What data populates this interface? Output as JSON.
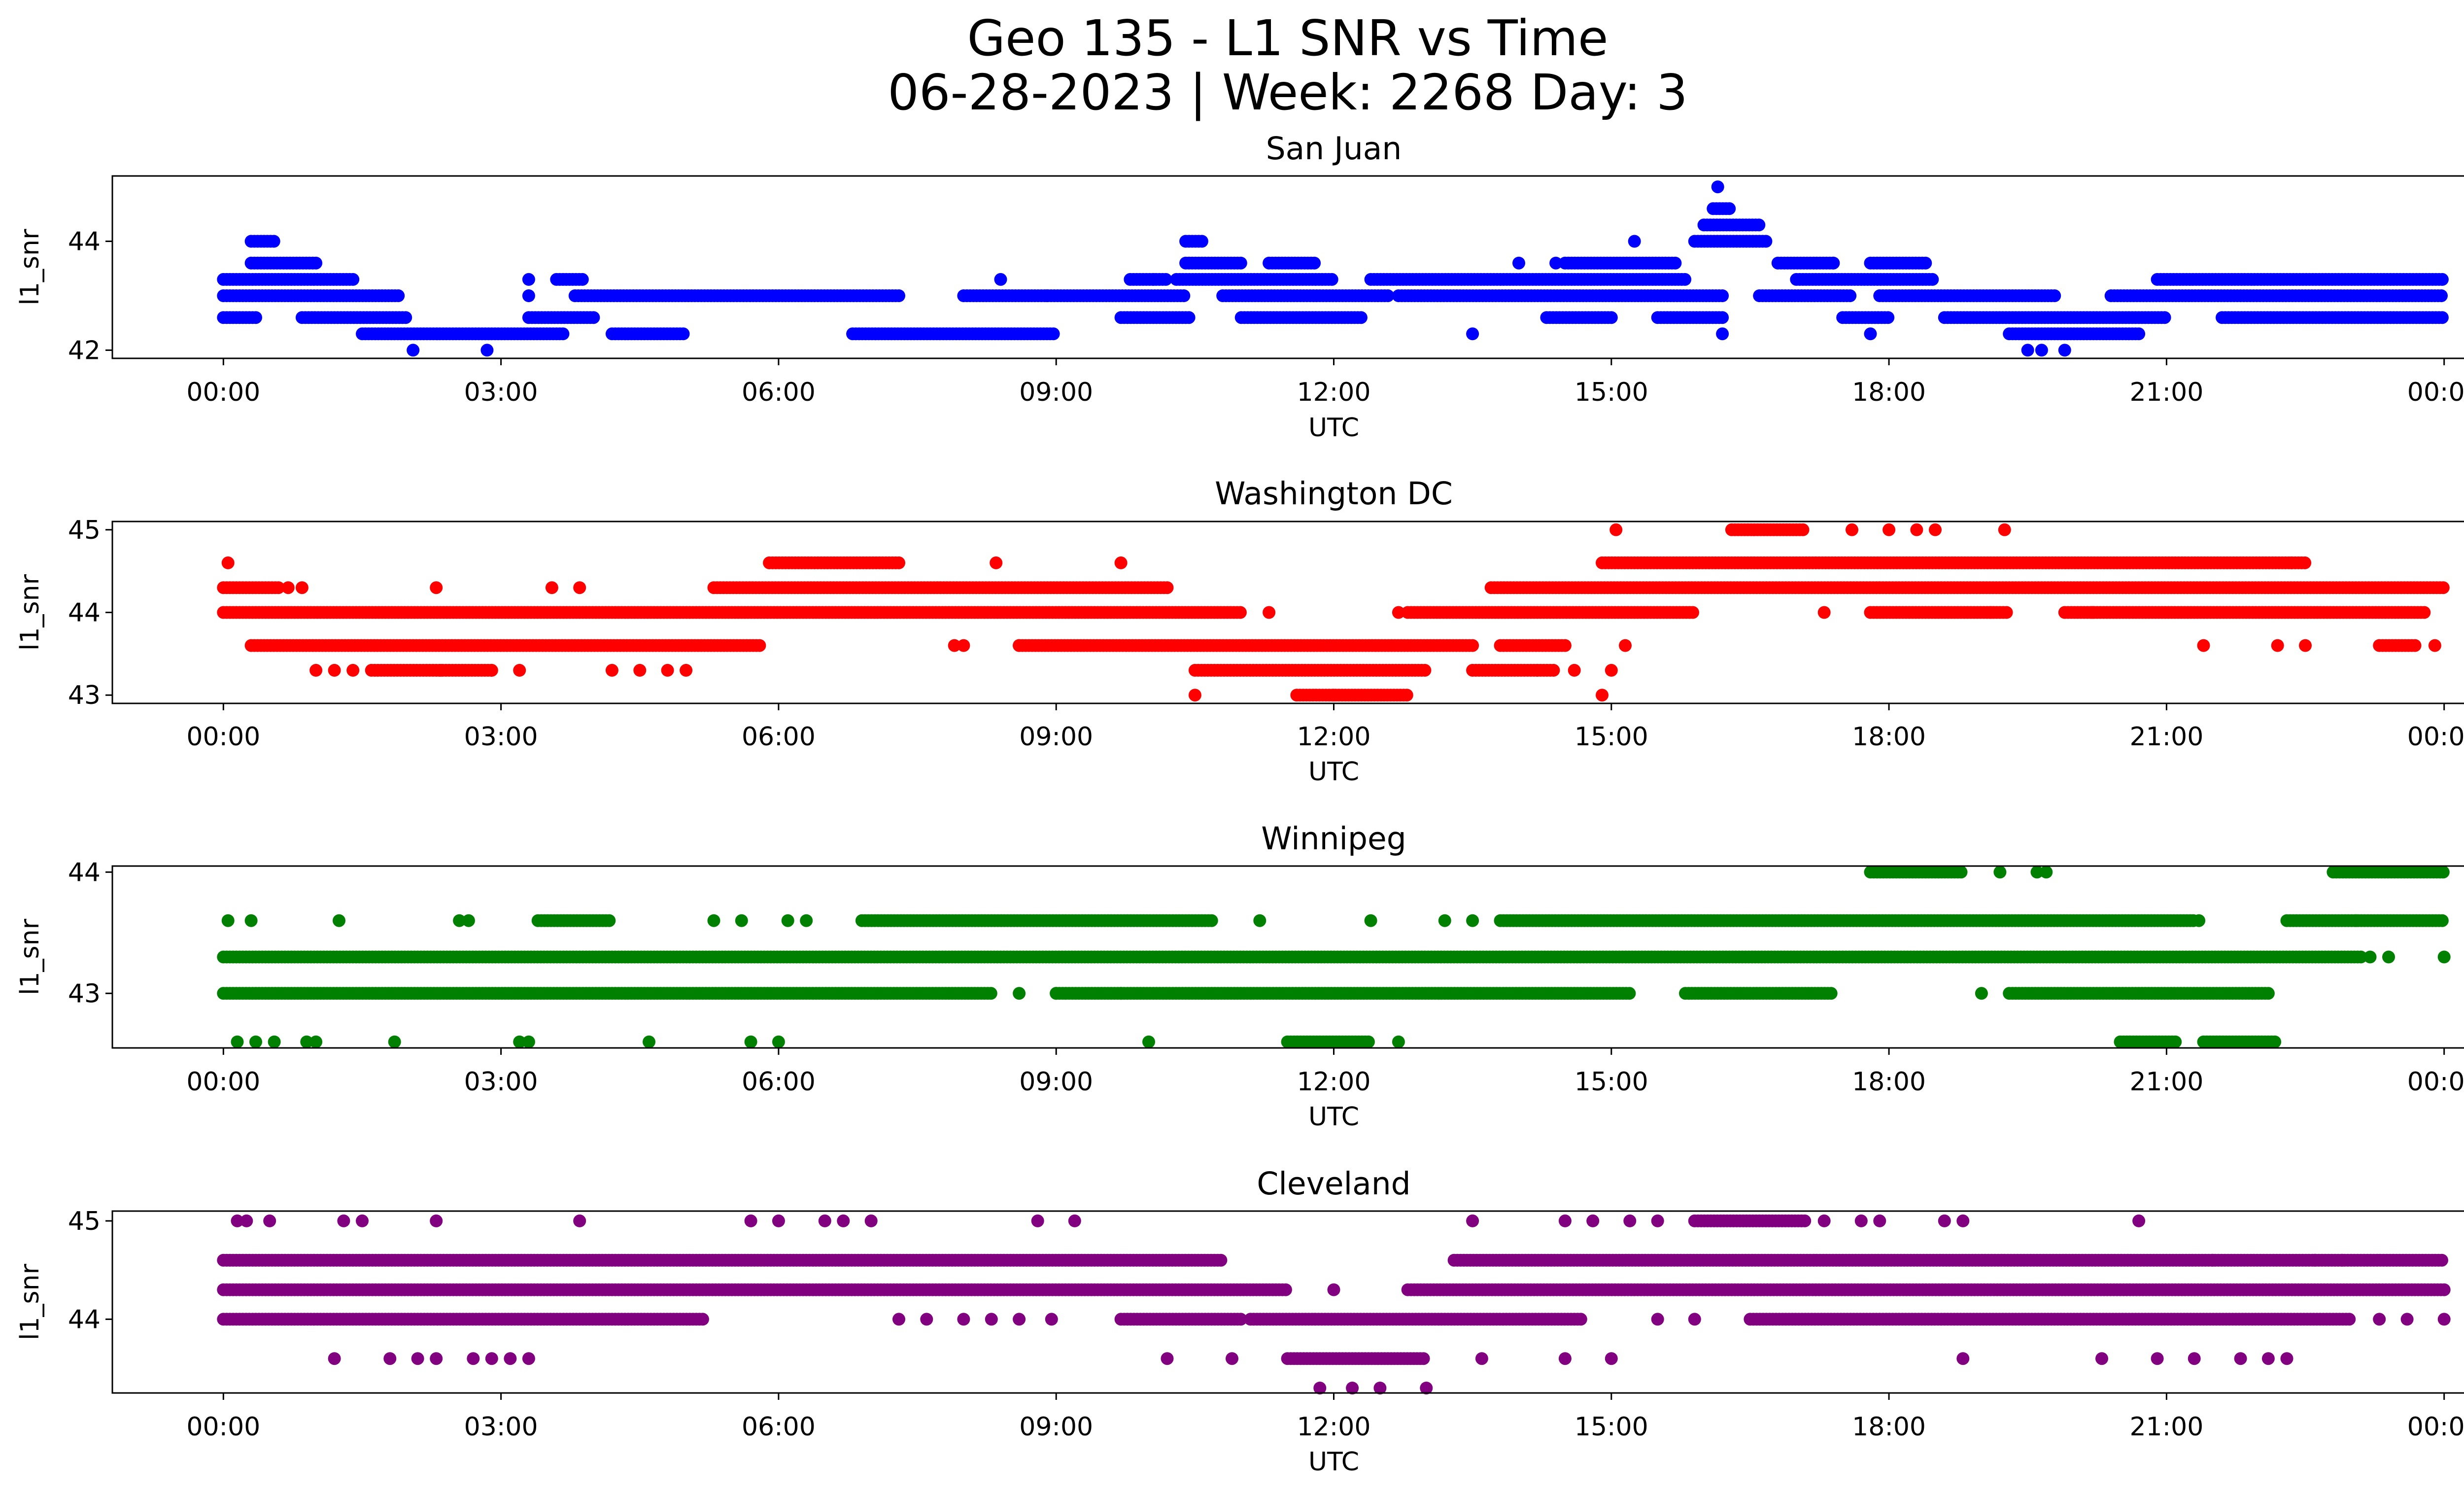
{
  "figure": {
    "title_line1": "Geo 135 - L1 SNR vs Time",
    "title_line2": "06-28-2023 | Week: 2268 Day: 3"
  },
  "x_axis": {
    "label": "UTC",
    "ticks_hours": [
      0,
      3,
      6,
      9,
      12,
      15,
      18,
      21,
      24
    ],
    "tick_labels": [
      "00:00",
      "03:00",
      "06:00",
      "09:00",
      "12:00",
      "15:00",
      "18:00",
      "21:00",
      "00:00"
    ]
  },
  "chart_data": [
    {
      "type": "scatter",
      "title": "San Juan",
      "xlabel": "UTC",
      "ylabel": "l1_snr",
      "color": "#0000ff",
      "xlim": [
        -1.2,
        25.2
      ],
      "ylim": [
        41.85,
        45.2
      ],
      "yticks": [
        42,
        44
      ],
      "ytick_labels": [
        "42",
        "44"
      ],
      "levels": [
        42.0,
        42.3,
        42.6,
        43.0,
        43.3,
        43.6,
        44.0,
        44.3,
        44.6,
        45.0
      ],
      "segments": [
        {
          "level": 42.6,
          "ranges": [
            [
              0,
              0.35
            ],
            [
              0.85,
              2.0
            ],
            [
              3.3,
              4.0
            ],
            [
              9.7,
              10.45
            ],
            [
              11.0,
              12.3
            ],
            [
              14.3,
              15.0
            ],
            [
              15.5,
              16.2
            ],
            [
              17.5,
              18.0
            ],
            [
              18.6,
              21.0
            ],
            [
              21.6,
              24.0
            ]
          ]
        },
        {
          "level": 43.0,
          "ranges": [
            [
              0,
              1.9
            ],
            [
              3.8,
              7.3
            ],
            [
              8.0,
              10.4
            ],
            [
              10.8,
              12.6
            ],
            [
              12.7,
              16.2
            ],
            [
              16.6,
              17.6
            ],
            [
              17.9,
              19.8
            ],
            [
              20.4,
              24.0
            ]
          ]
        },
        {
          "level": 43.3,
          "ranges": [
            [
              0,
              1.4
            ],
            [
              3.6,
              3.9
            ],
            [
              9.8,
              10.2
            ],
            [
              10.3,
              12.0
            ],
            [
              12.4,
              15.8
            ],
            [
              17.0,
              18.5
            ],
            [
              20.9,
              24.0
            ]
          ]
        },
        {
          "level": 42.3,
          "ranges": [
            [
              1.5,
              3.7
            ],
            [
              4.2,
              5.0
            ],
            [
              6.8,
              9.0
            ],
            [
              19.3,
              20.7
            ]
          ]
        },
        {
          "level": 43.6,
          "ranges": [
            [
              0.3,
              1.0
            ],
            [
              10.4,
              11.0
            ],
            [
              11.3,
              11.8
            ],
            [
              14.5,
              15.7
            ],
            [
              16.8,
              17.4
            ],
            [
              17.8,
              18.4
            ]
          ]
        },
        {
          "level": 44.0,
          "ranges": [
            [
              0.3,
              0.55
            ],
            [
              10.4,
              10.6
            ],
            [
              15.9,
              16.7
            ]
          ]
        },
        {
          "level": 44.3,
          "ranges": [
            [
              16.0,
              16.6
            ]
          ]
        },
        {
          "level": 44.6,
          "ranges": [
            [
              16.1,
              16.3
            ]
          ]
        }
      ],
      "points": [
        [
          16.15,
          45.0
        ],
        [
          2.05,
          42.0
        ],
        [
          2.85,
          42.0
        ],
        [
          19.5,
          42.0
        ],
        [
          19.65,
          42.0
        ],
        [
          19.9,
          42.0
        ],
        [
          16.2,
          42.3
        ],
        [
          13.5,
          42.3
        ],
        [
          17.8,
          42.3
        ],
        [
          3.3,
          43.3
        ],
        [
          3.3,
          43.0
        ],
        [
          8.4,
          43.3
        ],
        [
          8.9,
          43.0
        ],
        [
          14.0,
          43.6
        ],
        [
          14.4,
          43.6
        ],
        [
          15.25,
          44.0
        ],
        [
          17.4,
          43.6
        ],
        [
          10.05,
          43.3
        ]
      ]
    },
    {
      "type": "scatter",
      "title": "Washington DC",
      "xlabel": "UTC",
      "ylabel": "l1_snr",
      "color": "#ff0000",
      "xlim": [
        -1.2,
        25.2
      ],
      "ylim": [
        42.9,
        45.1
      ],
      "yticks": [
        43,
        44,
        45
      ],
      "ytick_labels": [
        "43",
        "44",
        "45"
      ],
      "levels": [
        43.0,
        43.3,
        43.6,
        44.0,
        44.3,
        44.6,
        45.0
      ],
      "segments": [
        {
          "level": 44.0,
          "ranges": [
            [
              0,
              11.0
            ],
            [
              12.8,
              15.9
            ],
            [
              17.8,
              19.3
            ],
            [
              19.9,
              23.8
            ]
          ]
        },
        {
          "level": 44.3,
          "ranges": [
            [
              0,
              0.6
            ],
            [
              5.3,
              10.2
            ],
            [
              13.7,
              24.0
            ]
          ]
        },
        {
          "level": 43.6,
          "ranges": [
            [
              0.3,
              5.8
            ],
            [
              8.6,
              13.5
            ],
            [
              13.8,
              14.5
            ],
            [
              23.3,
              23.7
            ]
          ]
        },
        {
          "level": 43.3,
          "ranges": [
            [
              1.6,
              2.9
            ],
            [
              10.5,
              13.0
            ],
            [
              13.5,
              14.4
            ]
          ]
        },
        {
          "level": 44.6,
          "ranges": [
            [
              5.9,
              7.3
            ],
            [
              14.9,
              22.5
            ]
          ]
        },
        {
          "level": 45.0,
          "ranges": [
            [
              16.3,
              17.1
            ]
          ]
        },
        {
          "level": 43.0,
          "ranges": [
            [
              11.6,
              12.8
            ]
          ]
        }
      ],
      "points": [
        [
          0.05,
          44.6
        ],
        [
          0.7,
          44.3
        ],
        [
          0.85,
          44.3
        ],
        [
          1.0,
          43.3
        ],
        [
          1.2,
          43.3
        ],
        [
          1.4,
          43.3
        ],
        [
          2.3,
          44.3
        ],
        [
          2.35,
          43.3
        ],
        [
          2.9,
          43.3
        ],
        [
          3.2,
          43.3
        ],
        [
          3.55,
          44.3
        ],
        [
          3.85,
          44.3
        ],
        [
          4.2,
          43.3
        ],
        [
          4.5,
          43.3
        ],
        [
          4.8,
          43.3
        ],
        [
          5.0,
          43.3
        ],
        [
          7.9,
          43.6
        ],
        [
          8.0,
          43.6
        ],
        [
          8.35,
          44.6
        ],
        [
          8.6,
          43.6
        ],
        [
          9.7,
          44.6
        ],
        [
          10.5,
          43.0
        ],
        [
          11.3,
          44.0
        ],
        [
          12.0,
          43.0
        ],
        [
          12.7,
          44.0
        ],
        [
          14.2,
          43.3
        ],
        [
          14.6,
          43.3
        ],
        [
          14.9,
          43.0
        ],
        [
          15.0,
          43.3
        ],
        [
          15.15,
          43.6
        ],
        [
          15.05,
          45.0
        ],
        [
          17.3,
          44.0
        ],
        [
          17.6,
          45.0
        ],
        [
          18.0,
          45.0
        ],
        [
          18.3,
          45.0
        ],
        [
          18.5,
          45.0
        ],
        [
          19.25,
          45.0
        ],
        [
          21.4,
          43.6
        ],
        [
          22.2,
          43.6
        ],
        [
          22.35,
          44.6
        ],
        [
          22.5,
          43.6
        ],
        [
          23.9,
          43.6
        ],
        [
          20.2,
          44.0
        ],
        [
          19.1,
          44.0
        ]
      ]
    },
    {
      "type": "scatter",
      "title": "Winnipeg",
      "xlabel": "UTC",
      "ylabel": "l1_snr",
      "color": "#008000",
      "xlim": [
        -1.2,
        25.2
      ],
      "ylim": [
        42.55,
        44.05
      ],
      "yticks": [
        43,
        44
      ],
      "ytick_labels": [
        "43",
        "44"
      ],
      "levels": [
        42.6,
        43.0,
        43.3,
        43.6,
        44.0
      ],
      "segments": [
        {
          "level": 43.3,
          "ranges": [
            [
              0,
              23.1
            ]
          ]
        },
        {
          "level": 43.0,
          "ranges": [
            [
              0,
              8.3
            ],
            [
              9.0,
              15.2
            ],
            [
              15.8,
              17.4
            ],
            [
              19.3,
              22.1
            ]
          ]
        },
        {
          "level": 43.6,
          "ranges": [
            [
              3.4,
              4.2
            ],
            [
              6.9,
              10.7
            ],
            [
              13.8,
              21.3
            ],
            [
              22.3,
              24.0
            ]
          ]
        },
        {
          "level": 42.6,
          "ranges": [
            [
              11.5,
              12.4
            ],
            [
              20.5,
              21.1
            ],
            [
              21.4,
              22.2
            ]
          ]
        },
        {
          "level": 44.0,
          "ranges": [
            [
              17.8,
              18.8
            ],
            [
              22.8,
              24.0
            ]
          ]
        }
      ],
      "points": [
        [
          0.15,
          42.6
        ],
        [
          0.35,
          42.6
        ],
        [
          0.55,
          42.6
        ],
        [
          0.9,
          42.6
        ],
        [
          1.0,
          42.6
        ],
        [
          1.85,
          42.6
        ],
        [
          3.2,
          42.6
        ],
        [
          3.3,
          42.6
        ],
        [
          4.6,
          42.6
        ],
        [
          5.7,
          42.6
        ],
        [
          6.0,
          42.6
        ],
        [
          10.0,
          42.6
        ],
        [
          12.7,
          42.6
        ],
        [
          0.05,
          43.6
        ],
        [
          0.3,
          43.6
        ],
        [
          1.25,
          43.6
        ],
        [
          2.55,
          43.6
        ],
        [
          2.65,
          43.6
        ],
        [
          5.3,
          43.6
        ],
        [
          5.6,
          43.6
        ],
        [
          6.1,
          43.6
        ],
        [
          6.3,
          43.6
        ],
        [
          11.2,
          43.6
        ],
        [
          12.4,
          43.6
        ],
        [
          13.2,
          43.6
        ],
        [
          13.5,
          43.6
        ],
        [
          8.6,
          43.0
        ],
        [
          9.0,
          43.0
        ],
        [
          9.7,
          43.0
        ],
        [
          19.2,
          44.0
        ],
        [
          19.6,
          44.0
        ],
        [
          19.7,
          44.0
        ],
        [
          19.0,
          43.0
        ],
        [
          23.2,
          43.3
        ],
        [
          24.0,
          43.3
        ],
        [
          23.4,
          43.3
        ],
        [
          23.05,
          43.6
        ],
        [
          21.35,
          43.6
        ]
      ]
    },
    {
      "type": "scatter",
      "title": "Cleveland",
      "xlabel": "UTC",
      "ylabel": "l1_snr",
      "color": "#800080",
      "xlim": [
        -1.2,
        25.2
      ],
      "ylim": [
        43.25,
        45.1
      ],
      "yticks": [
        44,
        45
      ],
      "ytick_labels": [
        "44",
        "45"
      ],
      "levels": [
        43.3,
        43.6,
        44.0,
        44.3,
        44.6,
        45.0
      ],
      "segments": [
        {
          "level": 44.6,
          "ranges": [
            [
              0,
              10.8
            ],
            [
              13.3,
              24.0
            ]
          ]
        },
        {
          "level": 44.3,
          "ranges": [
            [
              0,
              11.5
            ],
            [
              12.8,
              24.0
            ]
          ]
        },
        {
          "level": 44.0,
          "ranges": [
            [
              0,
              5.2
            ],
            [
              9.7,
              11.0
            ],
            [
              11.1,
              14.7
            ],
            [
              16.5,
              23.0
            ]
          ]
        },
        {
          "level": 43.6,
          "ranges": [
            [
              11.5,
              13.0
            ]
          ]
        },
        {
          "level": 45.0,
          "ranges": [
            [
              15.9,
              17.1
            ]
          ]
        }
      ],
      "points": [
        [
          0.15,
          45.0
        ],
        [
          0.25,
          45.0
        ],
        [
          0.5,
          45.0
        ],
        [
          1.3,
          45.0
        ],
        [
          1.5,
          45.0
        ],
        [
          2.3,
          45.0
        ],
        [
          3.85,
          45.0
        ],
        [
          5.7,
          45.0
        ],
        [
          6.0,
          45.0
        ],
        [
          6.5,
          45.0
        ],
        [
          6.7,
          45.0
        ],
        [
          7.0,
          45.0
        ],
        [
          8.8,
          45.0
        ],
        [
          9.2,
          45.0
        ],
        [
          13.5,
          45.0
        ],
        [
          14.5,
          45.0
        ],
        [
          14.8,
          45.0
        ],
        [
          15.2,
          45.0
        ],
        [
          15.5,
          45.0
        ],
        [
          17.3,
          45.0
        ],
        [
          17.7,
          45.0
        ],
        [
          17.9,
          45.0
        ],
        [
          18.6,
          45.0
        ],
        [
          18.8,
          45.0
        ],
        [
          20.7,
          45.0
        ],
        [
          1.2,
          43.6
        ],
        [
          1.8,
          43.6
        ],
        [
          2.1,
          43.6
        ],
        [
          2.3,
          43.6
        ],
        [
          2.7,
          43.6
        ],
        [
          2.9,
          43.6
        ],
        [
          3.1,
          43.6
        ],
        [
          3.3,
          43.6
        ],
        [
          10.2,
          43.6
        ],
        [
          10.9,
          43.6
        ],
        [
          13.6,
          43.6
        ],
        [
          14.5,
          43.6
        ],
        [
          15.0,
          43.6
        ],
        [
          18.8,
          43.6
        ],
        [
          20.3,
          43.6
        ],
        [
          20.9,
          43.6
        ],
        [
          21.3,
          43.6
        ],
        [
          21.8,
          43.6
        ],
        [
          22.1,
          43.6
        ],
        [
          22.3,
          43.6
        ],
        [
          12.0,
          44.3
        ],
        [
          11.85,
          43.3
        ],
        [
          12.2,
          43.3
        ],
        [
          12.5,
          43.3
        ],
        [
          13.0,
          43.3
        ],
        [
          7.3,
          44.0
        ],
        [
          7.6,
          44.0
        ],
        [
          8.0,
          44.0
        ],
        [
          8.3,
          44.0
        ],
        [
          8.6,
          44.0
        ],
        [
          8.95,
          44.0
        ],
        [
          15.5,
          44.0
        ],
        [
          15.9,
          44.0
        ],
        [
          23.3,
          44.0
        ],
        [
          23.6,
          44.0
        ],
        [
          24.0,
          44.0
        ],
        [
          22.9,
          44.6
        ],
        [
          22.6,
          44.6
        ],
        [
          21.5,
          44.6
        ]
      ]
    }
  ]
}
